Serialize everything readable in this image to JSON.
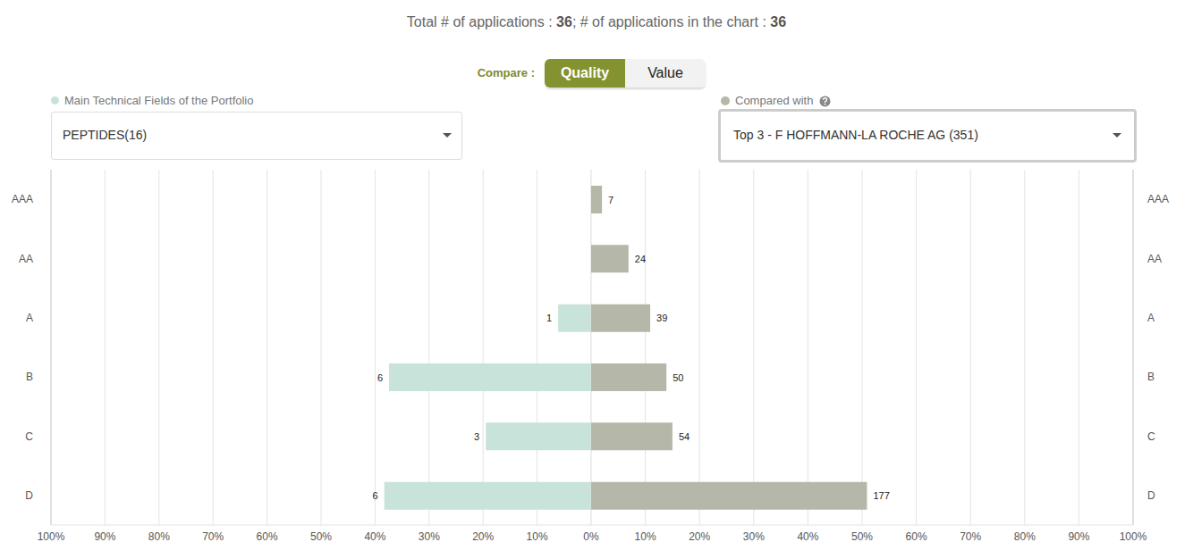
{
  "header": {
    "total_label": "Total # of applications :",
    "total": 36,
    "in_chart_label": "; # of applications in the chart :",
    "in_chart": 36
  },
  "compare": {
    "label": "Compare :",
    "options": [
      "Quality",
      "Value"
    ],
    "selected": "Quality"
  },
  "selectors": [
    {
      "value": "PEPTIDES(16)"
    },
    {
      "value": "Top 3 - F HOFFMANN-LA ROCHE AG (351)"
    }
  ],
  "chart_data": [
    {
      "type": "bar",
      "orientation": "horizontal",
      "grid": true,
      "categories": [
        "AAA",
        "AA",
        "A",
        "B",
        "C",
        "D"
      ],
      "series": [
        {
          "name": "Main Technical Fields of the Portfolio",
          "color": "#c8e3d9",
          "values": [
            0,
            0,
            6.1,
            37.4,
            19.5,
            38.3
          ],
          "counts": [
            0,
            0,
            1,
            6,
            3,
            6
          ]
        }
      ],
      "xlim": [
        0,
        100
      ],
      "xticks": [
        {
          "value": 100,
          "label": "100%"
        },
        {
          "value": 90,
          "label": "90%"
        },
        {
          "value": 80,
          "label": "80%"
        },
        {
          "value": 70,
          "label": "70%"
        },
        {
          "value": 60,
          "label": "60%"
        },
        {
          "value": 50,
          "label": "50%"
        },
        {
          "value": 40,
          "label": "40%"
        },
        {
          "value": 30,
          "label": "30%"
        },
        {
          "value": 20,
          "label": "20%"
        },
        {
          "value": 10,
          "label": "10%"
        }
      ]
    },
    {
      "type": "bar",
      "orientation": "horizontal",
      "grid": true,
      "categories": [
        "AAA",
        "AA",
        "A",
        "B",
        "C",
        "D"
      ],
      "series": [
        {
          "name": "Compared with",
          "color": "#b5b8a8",
          "values": [
            2.0,
            6.9,
            10.9,
            13.9,
            15.0,
            50.9
          ],
          "counts": [
            7,
            24,
            39,
            50,
            54,
            177
          ]
        }
      ],
      "xlim": [
        0,
        100
      ],
      "xticks": [
        {
          "value": 0,
          "label": "0%"
        },
        {
          "value": 10,
          "label": "10%"
        },
        {
          "value": 20,
          "label": "20%"
        },
        {
          "value": 30,
          "label": "30%"
        },
        {
          "value": 40,
          "label": "40%"
        },
        {
          "value": 50,
          "label": "50%"
        },
        {
          "value": 60,
          "label": "60%"
        },
        {
          "value": 70,
          "label": "70%"
        },
        {
          "value": 80,
          "label": "80%"
        },
        {
          "value": 90,
          "label": "90%"
        },
        {
          "value": 100,
          "label": "100%"
        }
      ]
    }
  ]
}
